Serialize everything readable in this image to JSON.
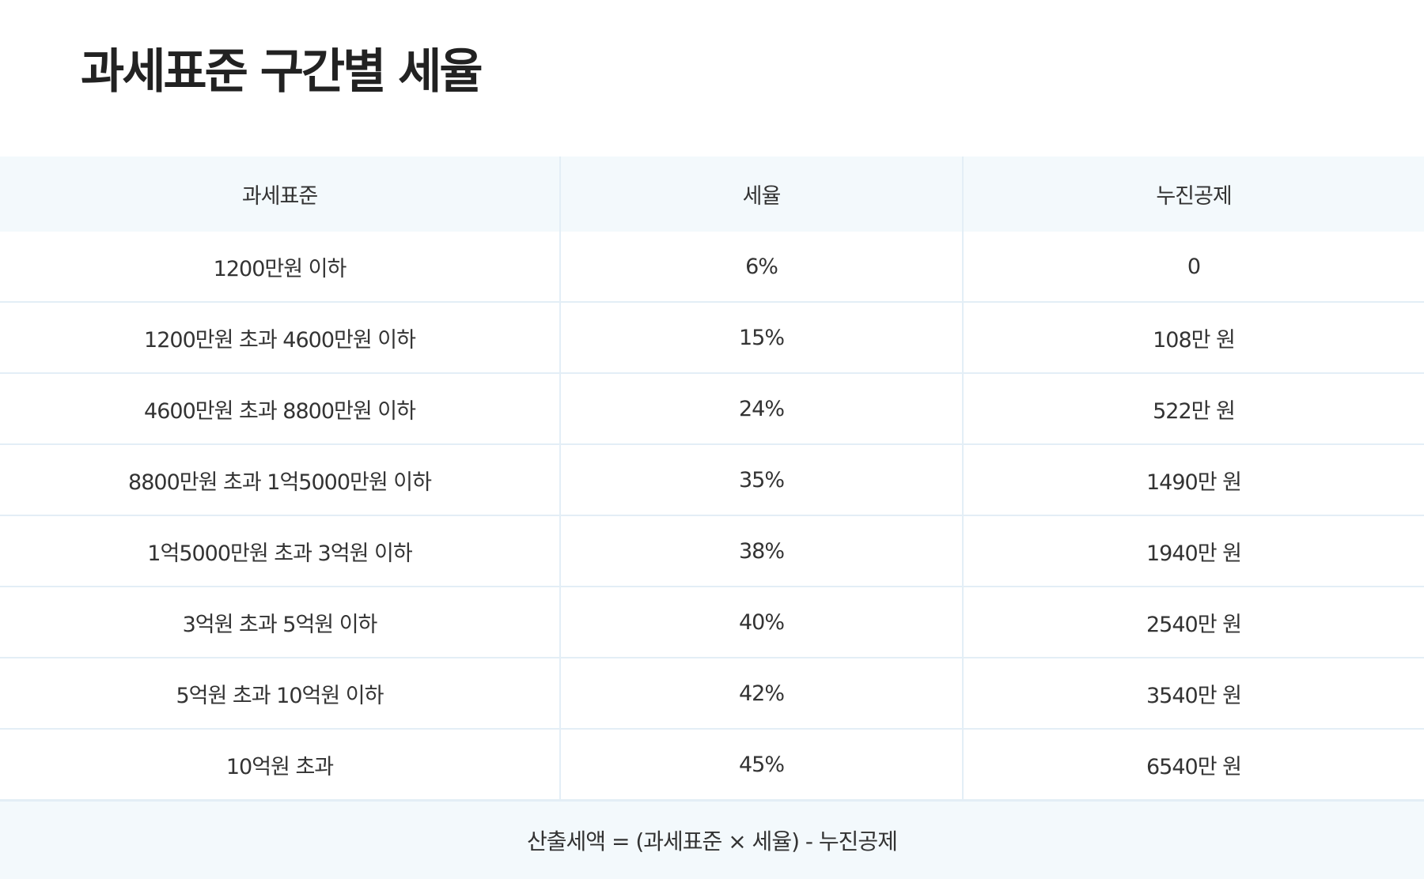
{
  "title": "과세표준 구간별 세율",
  "table": {
    "headers": [
      "과세표준",
      "세율",
      "누진공제"
    ],
    "rows": [
      [
        "1200만원 이하",
        "6%",
        "0"
      ],
      [
        "1200만원 초과 4600만원 이하",
        "15%",
        "108만 원"
      ],
      [
        "4600만원 초과 8800만원 이하",
        "24%",
        "522만 원"
      ],
      [
        "8800만원 초과 1억5000만원 이하",
        "35%",
        "1490만 원"
      ],
      [
        "1억5000만원 초과 3억원 이하",
        "38%",
        "1940만 원"
      ],
      [
        "3억원 초과 5억원 이하",
        "40%",
        "2540만 원"
      ],
      [
        "5억원 초과 10억원 이하",
        "42%",
        "3540만 원"
      ],
      [
        "10억원 초과",
        "45%",
        "6540만 원"
      ]
    ]
  },
  "footer": {
    "formula": "산출세액 = (과세표준 × 세율) - 누진공제"
  },
  "colors": {
    "header_background": "#f3f9fc",
    "grid_line": "#e3eef6",
    "text": "#333333",
    "title": "#222222"
  }
}
